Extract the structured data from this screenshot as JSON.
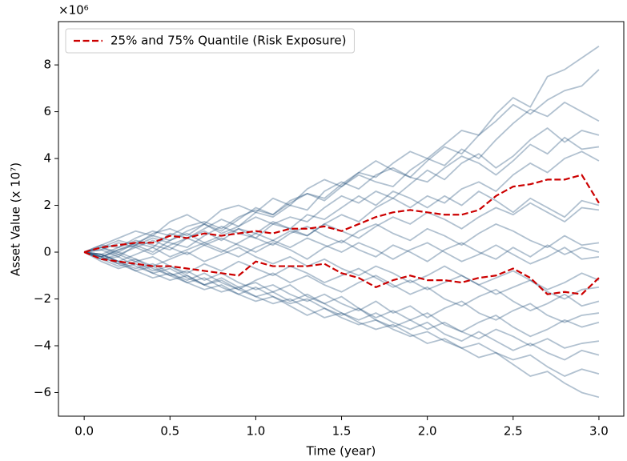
{
  "chart_data": {
    "type": "line",
    "xlabel": "Time (year)",
    "ylabel": "Asset Value (x 10⁷)",
    "y_offset_label": "×10⁶",
    "x": [
      0,
      0.1,
      0.2,
      0.3,
      0.4,
      0.5,
      0.6,
      0.7,
      0.8,
      0.9,
      1.0,
      1.1,
      1.2,
      1.3,
      1.4,
      1.5,
      1.6,
      1.7,
      1.8,
      1.9,
      2.0,
      2.1,
      2.2,
      2.3,
      2.4,
      2.5,
      2.6,
      2.7,
      2.8,
      2.9,
      3.0
    ],
    "xlim": [
      -0.15,
      3.145
    ],
    "ylim": [
      -7.01,
      9.85
    ],
    "xticks": [
      {
        "value": 0,
        "label": "0.0"
      },
      {
        "value": 0.5,
        "label": "0.5"
      },
      {
        "value": 1,
        "label": "1.0"
      },
      {
        "value": 1.5,
        "label": "1.5"
      },
      {
        "value": 2,
        "label": "2.0"
      },
      {
        "value": 2.5,
        "label": "2.5"
      },
      {
        "value": 3,
        "label": "3.0"
      }
    ],
    "yticks": [
      {
        "value": -6,
        "label": "−6"
      },
      {
        "value": -4,
        "label": "−4"
      },
      {
        "value": -2,
        "label": "−2"
      },
      0,
      2,
      4,
      6,
      8
    ],
    "grid": false,
    "legend": "upper left",
    "series": [
      {
        "color": "#1f4e79",
        "alpha": 0.35,
        "values": [
          0,
          0.3,
          0.2,
          0.6,
          0.9,
          0.7,
          1.1,
          1.3,
          1.0,
          1.5,
          1.8,
          1.6,
          2.2,
          2.5,
          2.3,
          2.9,
          3.4,
          3.2,
          3.8,
          4.3,
          4.0,
          4.6,
          5.2,
          5.0,
          5.9,
          6.6,
          6.2,
          7.5,
          7.8,
          8.3,
          8.8
        ]
      },
      {
        "color": "#1f4e79",
        "alpha": 0.35,
        "values": [
          0,
          -0.2,
          0.1,
          0.4,
          0.2,
          0.8,
          0.6,
          1.0,
          1.4,
          1.1,
          1.7,
          1.5,
          2.0,
          1.8,
          2.6,
          3.0,
          2.7,
          3.3,
          3.6,
          3.2,
          3.9,
          4.5,
          4.2,
          5.0,
          5.6,
          6.3,
          5.9,
          6.5,
          6.9,
          7.1,
          7.8
        ]
      },
      {
        "color": "#1f4e79",
        "alpha": 0.35,
        "values": [
          0,
          0.2,
          0.5,
          0.3,
          0.8,
          1.0,
          0.7,
          1.2,
          0.9,
          1.4,
          1.9,
          1.6,
          2.1,
          2.5,
          2.2,
          2.8,
          3.3,
          3.0,
          2.8,
          3.5,
          4.0,
          3.7,
          4.4,
          4.0,
          4.8,
          5.5,
          6.1,
          5.8,
          6.4,
          6.0,
          5.6
        ]
      },
      {
        "color": "#1f4e79",
        "alpha": 0.35,
        "values": [
          0,
          0.1,
          -0.2,
          0.3,
          0.6,
          0.4,
          0.2,
          0.7,
          1.1,
          0.8,
          0.6,
          1.2,
          1.5,
          1.3,
          1.9,
          2.4,
          2.1,
          2.6,
          2.3,
          2.9,
          3.5,
          3.1,
          3.8,
          4.2,
          3.6,
          4.1,
          4.8,
          5.3,
          4.7,
          5.2,
          5.0
        ]
      },
      {
        "color": "#1f4e79",
        "alpha": 0.35,
        "values": [
          0,
          0.3,
          0.6,
          0.9,
          0.7,
          1.3,
          1.6,
          1.2,
          1.8,
          2.0,
          1.7,
          2.3,
          2.0,
          2.7,
          3.1,
          2.8,
          3.4,
          3.9,
          3.5,
          3.2,
          3.0,
          3.6,
          4.1,
          3.8,
          3.3,
          3.9,
          4.6,
          4.2,
          4.9,
          4.4,
          4.5
        ]
      },
      {
        "color": "#1f4e79",
        "alpha": 0.35,
        "values": [
          0,
          -0.1,
          0.2,
          0.5,
          0.3,
          0.1,
          0.6,
          0.9,
          0.5,
          1.0,
          0.8,
          1.3,
          1.0,
          0.7,
          1.2,
          1.6,
          1.3,
          1.9,
          2.3,
          1.9,
          2.4,
          2.1,
          2.7,
          3.0,
          2.6,
          3.3,
          3.8,
          3.4,
          4.0,
          4.3,
          3.9
        ]
      },
      {
        "color": "#1f4e79",
        "alpha": 0.35,
        "values": [
          0,
          0.2,
          0.0,
          0.4,
          0.7,
          0.5,
          0.9,
          1.2,
          0.8,
          1.1,
          1.5,
          1.2,
          1.0,
          1.6,
          1.4,
          1.9,
          2.4,
          2.0,
          2.6,
          2.3,
          1.9,
          2.4,
          2.0,
          2.6,
          2.2,
          1.7,
          2.3,
          1.9,
          1.5,
          2.2,
          2.0
        ]
      },
      {
        "color": "#1f4e79",
        "alpha": 0.35,
        "values": [
          0,
          0.1,
          0.4,
          0.2,
          -0.1,
          0.3,
          0.6,
          0.3,
          0.0,
          0.4,
          0.8,
          0.5,
          0.9,
          0.7,
          1.2,
          0.9,
          0.6,
          1.1,
          1.5,
          1.2,
          1.7,
          1.4,
          1.0,
          1.5,
          1.9,
          1.6,
          2.1,
          1.7,
          1.3,
          1.9,
          1.8
        ]
      },
      {
        "color": "#1f4e79",
        "alpha": 0.35,
        "values": [
          0,
          -0.2,
          0.1,
          0.3,
          0.0,
          0.5,
          0.8,
          0.4,
          0.7,
          1.0,
          0.6,
          0.3,
          0.8,
          1.1,
          0.7,
          0.4,
          0.9,
          1.2,
          0.8,
          0.5,
          1.0,
          0.7,
          0.3,
          0.8,
          1.2,
          0.9,
          0.5,
          0.2,
          0.7,
          0.3,
          0.4
        ]
      },
      {
        "color": "#1f4e79",
        "alpha": 0.35,
        "values": [
          0,
          0.2,
          -0.1,
          0.2,
          0.5,
          0.2,
          -0.1,
          0.3,
          0.6,
          0.3,
          0.0,
          0.4,
          0.1,
          -0.3,
          0.2,
          0.5,
          0.1,
          -0.2,
          0.3,
          0.0,
          -0.4,
          0.1,
          0.4,
          0.0,
          -0.3,
          0.2,
          -0.2,
          0.3,
          -0.1,
          0.2,
          0.0
        ]
      },
      {
        "color": "#1f4e79",
        "alpha": 0.35,
        "values": [
          0,
          -0.1,
          -0.4,
          -0.1,
          0.2,
          -0.2,
          0.1,
          0.4,
          0.1,
          -0.2,
          0.2,
          0.5,
          0.2,
          0.6,
          0.3,
          0.0,
          0.4,
          0.1,
          -0.3,
          0.1,
          0.4,
          0.0,
          -0.4,
          -0.1,
          0.3,
          -0.1,
          -0.5,
          -0.2,
          0.2,
          -0.3,
          -0.2
        ]
      },
      {
        "color": "#1f4e79",
        "alpha": 0.35,
        "values": [
          0,
          -0.2,
          0.0,
          -0.3,
          -0.6,
          -0.3,
          0.0,
          -0.4,
          -0.1,
          0.2,
          -0.2,
          -0.5,
          -0.2,
          -0.6,
          -0.3,
          -0.7,
          -1.0,
          -0.6,
          -0.9,
          -1.3,
          -1.0,
          -0.6,
          -1.0,
          -1.4,
          -1.1,
          -0.8,
          -1.2,
          -1.6,
          -1.3,
          -0.9,
          -1.2
        ]
      },
      {
        "color": "#1f4e79",
        "alpha": 0.35,
        "values": [
          0,
          -0.3,
          -0.1,
          -0.4,
          -0.2,
          -0.6,
          -0.9,
          -0.5,
          -0.8,
          -0.4,
          -0.7,
          -1.0,
          -0.6,
          -0.9,
          -1.3,
          -1.0,
          -0.7,
          -1.1,
          -1.5,
          -1.2,
          -1.6,
          -1.3,
          -1.0,
          -1.4,
          -1.8,
          -1.5,
          -1.2,
          -1.7,
          -2.0,
          -1.6,
          -1.5
        ]
      },
      {
        "color": "#1f4e79",
        "alpha": 0.35,
        "values": [
          0,
          -0.1,
          -0.4,
          -0.7,
          -0.5,
          -0.9,
          -1.2,
          -0.9,
          -1.3,
          -1.6,
          -1.2,
          -0.9,
          -1.3,
          -1.0,
          -1.4,
          -1.7,
          -1.3,
          -1.0,
          -1.4,
          -1.8,
          -1.5,
          -2.0,
          -2.3,
          -1.9,
          -1.6,
          -2.1,
          -2.5,
          -2.2,
          -1.8,
          -2.3,
          -2.1
        ]
      },
      {
        "color": "#1f4e79",
        "alpha": 0.35,
        "values": [
          0,
          -0.2,
          -0.5,
          -0.3,
          -0.7,
          -1.0,
          -0.8,
          -1.2,
          -0.9,
          -1.3,
          -1.6,
          -1.4,
          -1.8,
          -2.1,
          -1.8,
          -2.2,
          -2.5,
          -2.1,
          -2.6,
          -2.3,
          -2.8,
          -2.4,
          -2.1,
          -2.6,
          -2.9,
          -2.5,
          -2.2,
          -2.7,
          -3.0,
          -2.7,
          -2.6
        ]
      },
      {
        "color": "#1f4e79",
        "alpha": 0.35,
        "values": [
          0,
          -0.3,
          -0.6,
          -0.4,
          -0.8,
          -0.6,
          -1.0,
          -1.4,
          -1.1,
          -1.5,
          -1.3,
          -1.7,
          -1.4,
          -1.9,
          -2.2,
          -1.9,
          -2.4,
          -2.8,
          -2.5,
          -2.9,
          -2.6,
          -3.1,
          -3.4,
          -3.0,
          -2.7,
          -3.2,
          -3.6,
          -3.3,
          -2.9,
          -3.2,
          -3.0
        ]
      },
      {
        "color": "#1f4e79",
        "alpha": 0.35,
        "values": [
          0,
          -0.1,
          -0.4,
          -0.8,
          -0.6,
          -1.0,
          -1.3,
          -1.1,
          -1.5,
          -1.8,
          -1.5,
          -1.9,
          -2.2,
          -2.0,
          -2.4,
          -2.7,
          -2.4,
          -2.9,
          -3.2,
          -2.9,
          -3.3,
          -3.0,
          -3.4,
          -3.7,
          -3.3,
          -3.6,
          -4.0,
          -3.7,
          -4.1,
          -3.9,
          -3.8
        ]
      },
      {
        "color": "#1f4e79",
        "alpha": 0.35,
        "values": [
          0,
          -0.3,
          -0.2,
          -0.6,
          -0.9,
          -0.7,
          -1.1,
          -1.4,
          -1.2,
          -1.6,
          -1.9,
          -1.7,
          -2.1,
          -1.8,
          -2.2,
          -2.6,
          -2.9,
          -2.6,
          -3.0,
          -3.3,
          -3.0,
          -3.5,
          -3.8,
          -3.4,
          -3.8,
          -4.2,
          -3.9,
          -4.3,
          -4.6,
          -4.2,
          -4.4
        ]
      },
      {
        "color": "#1f4e79",
        "alpha": 0.35,
        "values": [
          0,
          -0.2,
          -0.5,
          -0.8,
          -1.1,
          -0.9,
          -1.3,
          -1.6,
          -1.4,
          -1.8,
          -2.1,
          -1.9,
          -2.3,
          -2.7,
          -2.4,
          -2.8,
          -3.1,
          -2.9,
          -3.3,
          -3.6,
          -3.4,
          -3.8,
          -4.1,
          -3.9,
          -4.3,
          -4.6,
          -4.4,
          -4.9,
          -5.3,
          -5.0,
          -5.2
        ]
      },
      {
        "color": "#1f4e79",
        "alpha": 0.35,
        "values": [
          0,
          -0.4,
          -0.7,
          -0.5,
          -0.9,
          -1.2,
          -1.0,
          -1.4,
          -1.7,
          -1.5,
          -1.9,
          -2.2,
          -2.0,
          -2.4,
          -2.8,
          -2.6,
          -3.0,
          -3.3,
          -3.1,
          -3.5,
          -3.9,
          -3.7,
          -4.1,
          -4.5,
          -4.3,
          -4.8,
          -5.3,
          -5.1,
          -5.6,
          -6.0,
          -6.2
        ]
      },
      {
        "name": "25% and 75% Quantile (Risk Exposure)",
        "color": "#cc0000",
        "alpha": 1,
        "linestyle": "dashed",
        "values": [
          0,
          0.2,
          0.3,
          0.4,
          0.4,
          0.7,
          0.6,
          0.8,
          0.7,
          0.8,
          0.9,
          0.8,
          1.0,
          1.0,
          1.1,
          0.9,
          1.2,
          1.5,
          1.7,
          1.8,
          1.7,
          1.6,
          1.6,
          1.8,
          2.4,
          2.8,
          2.9,
          3.1,
          3.1,
          3.3,
          2.1
        ]
      },
      {
        "color": "#cc0000",
        "alpha": 1,
        "linestyle": "dashed",
        "values": [
          0,
          -0.3,
          -0.4,
          -0.5,
          -0.6,
          -0.6,
          -0.7,
          -0.8,
          -0.9,
          -1.0,
          -0.4,
          -0.6,
          -0.6,
          -0.6,
          -0.5,
          -0.9,
          -1.1,
          -1.5,
          -1.2,
          -1.0,
          -1.2,
          -1.2,
          -1.3,
          -1.1,
          -1.0,
          -0.7,
          -1.1,
          -1.8,
          -1.7,
          -1.8,
          -1.1
        ]
      }
    ]
  }
}
